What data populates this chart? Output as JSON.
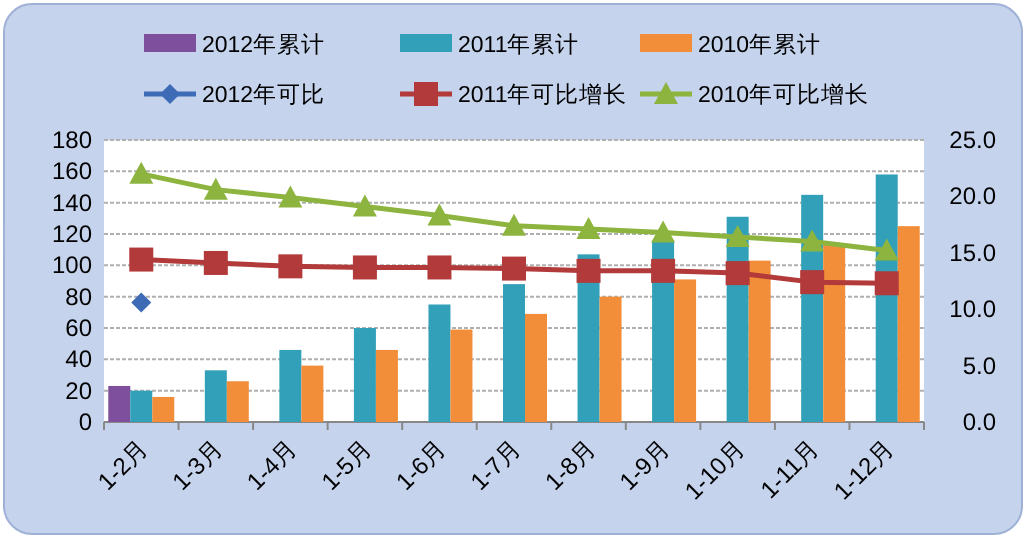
{
  "chart_data": {
    "type": "bar",
    "categories": [
      "1-2月",
      "1-3月",
      "1-4月",
      "1-5月",
      "1-6月",
      "1-7月",
      "1-8月",
      "1-9月",
      "1-10月",
      "1-11月",
      "1-12月"
    ],
    "series": [
      {
        "name": "2012年累计",
        "color": "#7d4f9c",
        "values": [
          23,
          null,
          null,
          null,
          null,
          null,
          null,
          null,
          null,
          null,
          null
        ]
      },
      {
        "name": "2011年累计",
        "color": "#31a0b8",
        "values": [
          20,
          33,
          46,
          60,
          75,
          88,
          107,
          116,
          131,
          145,
          158
        ]
      },
      {
        "name": "2010年累计",
        "color": "#f28e3a",
        "values": [
          16,
          26,
          36,
          46,
          59,
          69,
          80,
          91,
          103,
          113,
          125
        ]
      },
      {
        "name": "2012年可比",
        "type": "line",
        "axis": "y2",
        "marker": "diamond",
        "color": "#3d6bb5",
        "values": [
          10.6,
          null,
          null,
          null,
          null,
          null,
          null,
          null,
          null,
          null,
          null
        ]
      },
      {
        "name": "2011年可比增长",
        "type": "line",
        "axis": "y2",
        "marker": "square",
        "color": "#b23a3a",
        "values": [
          14.4,
          14.1,
          13.8,
          13.7,
          13.7,
          13.6,
          13.4,
          13.4,
          13.2,
          12.4,
          12.3
        ]
      },
      {
        "name": "2010年可比增长",
        "type": "line",
        "axis": "y2",
        "marker": "triangle",
        "color": "#8db43e",
        "values": [
          22.0,
          20.6,
          19.9,
          19.1,
          18.3,
          17.4,
          17.1,
          16.8,
          16.4,
          16.0,
          15.2
        ]
      }
    ],
    "ylim": [
      0,
      180
    ],
    "yticks": [
      0,
      20,
      40,
      60,
      80,
      100,
      120,
      140,
      160,
      180
    ],
    "y2lim": [
      0,
      25
    ],
    "y2ticks": [
      {
        "value": 0,
        "label": "0.0"
      },
      {
        "value": 5,
        "label": "5.0"
      },
      {
        "value": 10,
        "label": "10.0"
      },
      {
        "value": 15,
        "label": "15.0"
      },
      {
        "value": 20,
        "label": "20.0"
      },
      {
        "value": 25,
        "label": "25.0"
      }
    ],
    "grid": "y",
    "legend": "top"
  }
}
